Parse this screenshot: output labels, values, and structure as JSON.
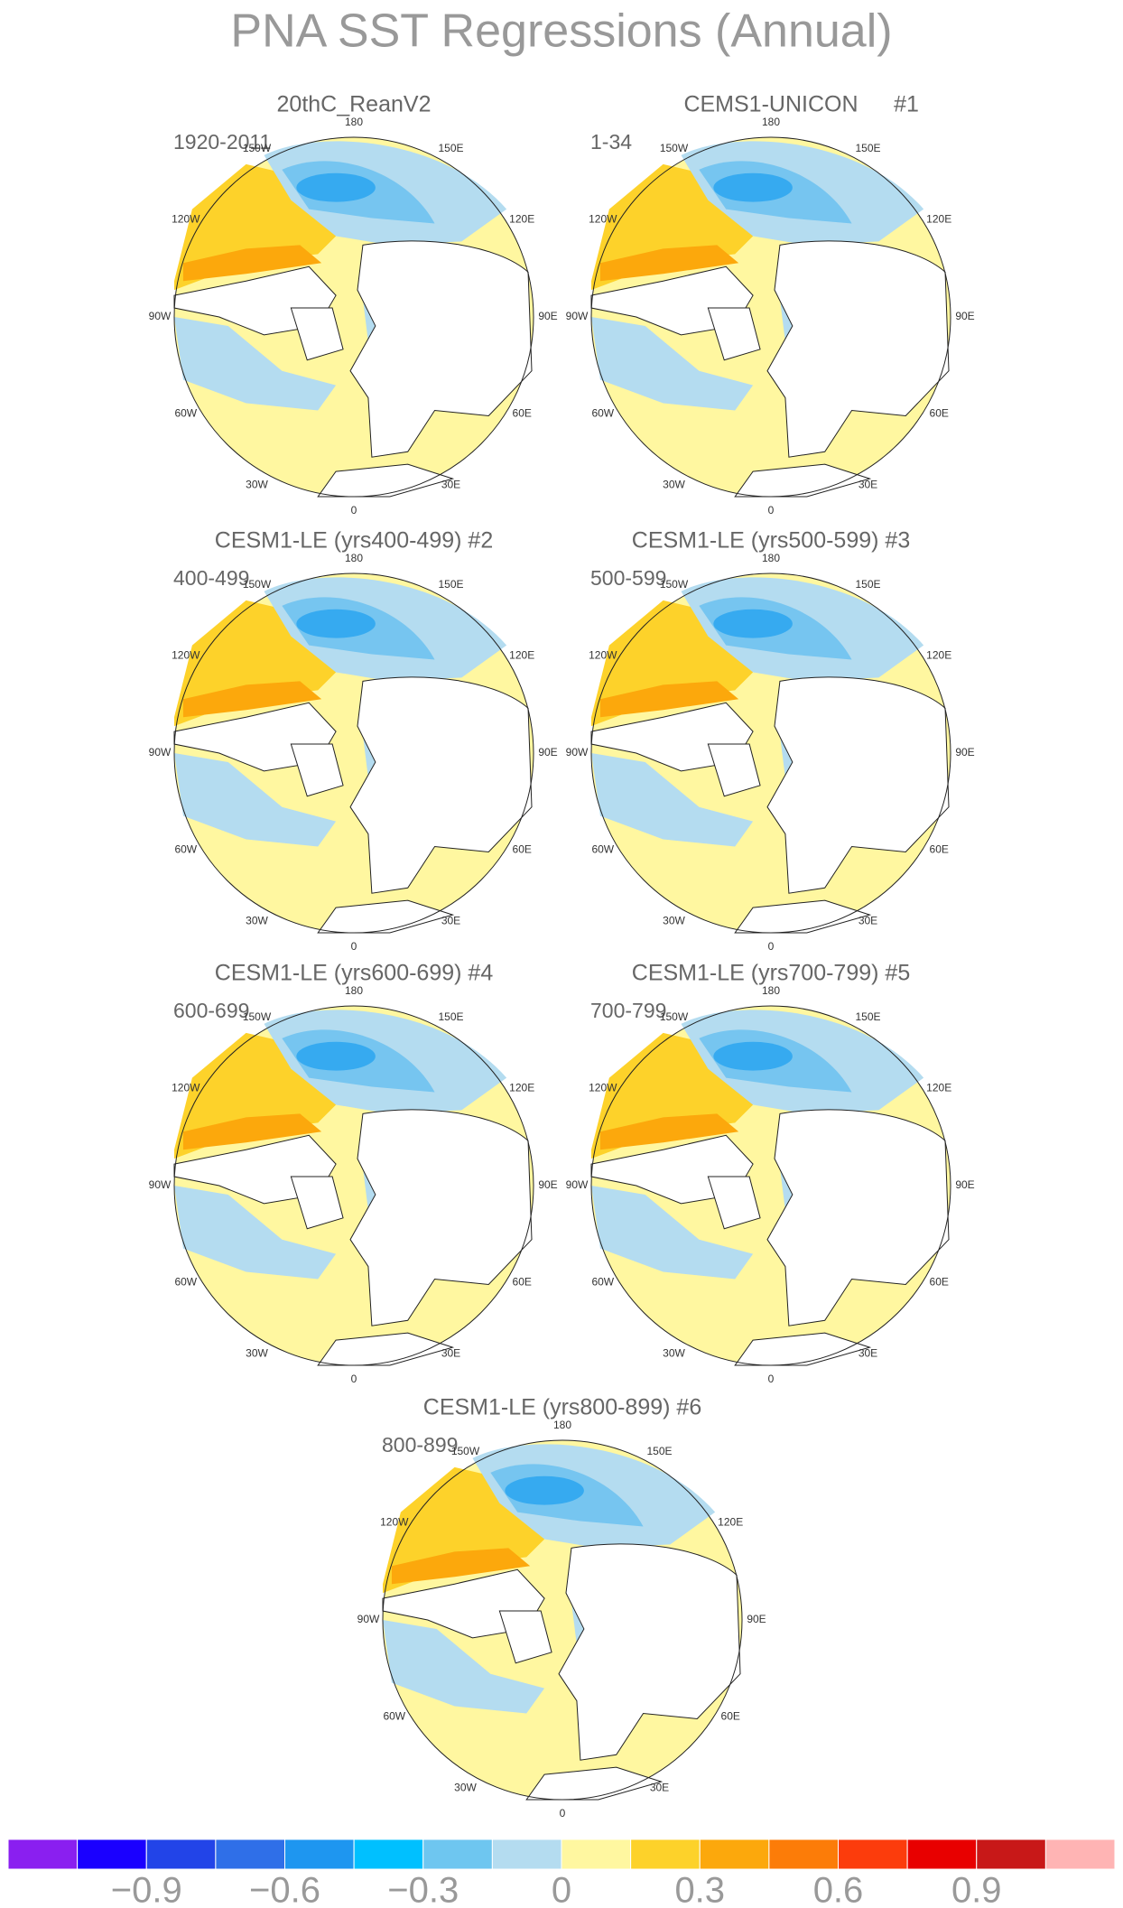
{
  "title": "PNA SST Regressions (Annual)",
  "lon_labels": [
    "180",
    "150E",
    "120E",
    "90E",
    "60E",
    "30E",
    "0",
    "30W",
    "60W",
    "90W",
    "120W",
    "150W"
  ],
  "panels": [
    {
      "title": "20thC_ReanV2",
      "period": "1920-2011"
    },
    {
      "title": "CEMS1-UNICON",
      "tag": "#1",
      "period": "1-34"
    },
    {
      "title": "CESM1-LE (yrs400-499) #2",
      "period": "400-499"
    },
    {
      "title": "CESM1-LE (yrs500-599) #3",
      "period": "500-599"
    },
    {
      "title": "CESM1-LE (yrs600-699) #4",
      "period": "600-699"
    },
    {
      "title": "CESM1-LE (yrs700-799) #5",
      "period": "700-799"
    },
    {
      "title": "CESM1-LE (yrs800-899) #6",
      "period": "800-899"
    }
  ],
  "colorbar": {
    "colors": [
      "#8a1ff0",
      "#1a00ff",
      "#2244e8",
      "#2f6fe8",
      "#1e96f0",
      "#00c0ff",
      "#6ec6f0",
      "#b4dcf0",
      "#fff7a0",
      "#fdd22a",
      "#fca80c",
      "#fc7c08",
      "#fc3c0c",
      "#e80000",
      "#c81818",
      "#ffb4b4"
    ],
    "lim": [
      -1.2,
      1.2
    ],
    "ticks": [
      {
        "value": -0.9,
        "label": "−0.9"
      },
      {
        "value": -0.6,
        "label": "−0.6"
      },
      {
        "value": -0.3,
        "label": "−0.3"
      },
      0,
      0.3,
      0.6,
      0.9
    ]
  }
}
